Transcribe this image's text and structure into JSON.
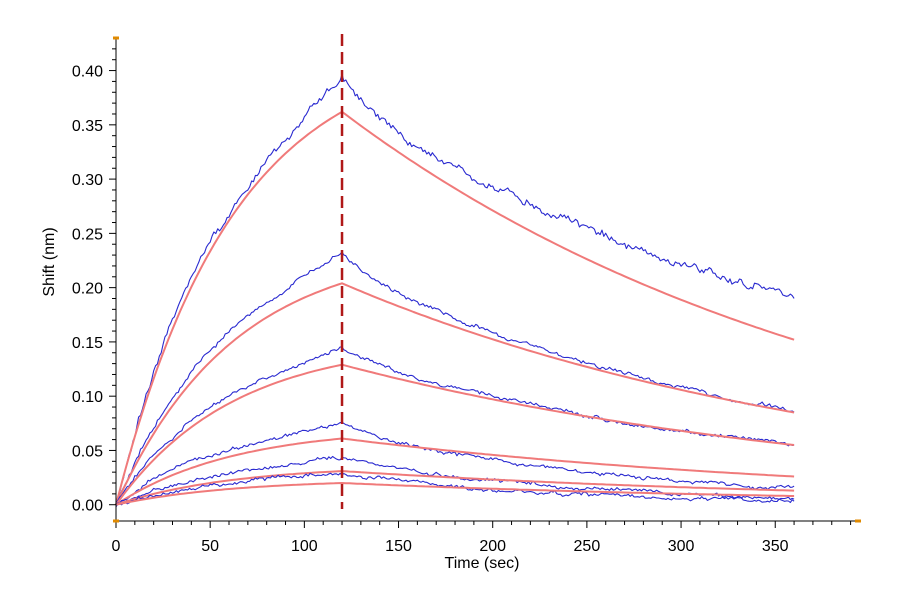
{
  "chart_data": {
    "type": "line",
    "xlabel": "Time (sec)",
    "ylabel": "Shift (nm)",
    "xlim": [
      0,
      395
    ],
    "ylim": [
      -0.015,
      0.43
    ],
    "xticks": [
      0,
      50,
      100,
      150,
      200,
      250,
      300,
      350
    ],
    "yticks": [
      0.0,
      0.05,
      0.1,
      0.15,
      0.2,
      0.25,
      0.3,
      0.35,
      0.4
    ],
    "xtick_labels": [
      "0",
      "50",
      "100",
      "150",
      "200",
      "250",
      "300",
      "350"
    ],
    "ytick_labels": [
      "0.00",
      "0.05",
      "0.10",
      "0.15",
      "0.20",
      "0.25",
      "0.30",
      "0.35",
      "0.40"
    ],
    "grid": false,
    "legend": "none",
    "dissociation_start_time": 120,
    "association_end_time": 120,
    "end_time": 360,
    "colors": {
      "raw": "#2a2ad0",
      "fit": "#f07a7a",
      "divider": "#b01818",
      "axis_marker": "#e08a00"
    },
    "series": [
      {
        "name": "raw-1",
        "kind": "raw",
        "peak": 0.395,
        "end": 0.19
      },
      {
        "name": "fit-1",
        "kind": "fit",
        "peak": 0.362,
        "end": 0.152
      },
      {
        "name": "raw-2",
        "kind": "raw",
        "peak": 0.232,
        "end": 0.087
      },
      {
        "name": "fit-2",
        "kind": "fit",
        "peak": 0.204,
        "end": 0.085
      },
      {
        "name": "raw-3",
        "kind": "raw",
        "peak": 0.146,
        "end": 0.055
      },
      {
        "name": "fit-3",
        "kind": "fit",
        "peak": 0.129,
        "end": 0.055
      },
      {
        "name": "raw-4",
        "kind": "raw",
        "peak": 0.075,
        "end": 0.015
      },
      {
        "name": "fit-4",
        "kind": "fit",
        "peak": 0.061,
        "end": 0.026
      },
      {
        "name": "raw-5",
        "kind": "raw",
        "peak": 0.044,
        "end": 0.007
      },
      {
        "name": "fit-5",
        "kind": "fit",
        "peak": 0.031,
        "end": 0.013
      },
      {
        "name": "raw-6",
        "kind": "raw",
        "peak": 0.03,
        "end": 0.004
      },
      {
        "name": "fit-6",
        "kind": "fit",
        "peak": 0.02,
        "end": 0.008
      }
    ]
  }
}
